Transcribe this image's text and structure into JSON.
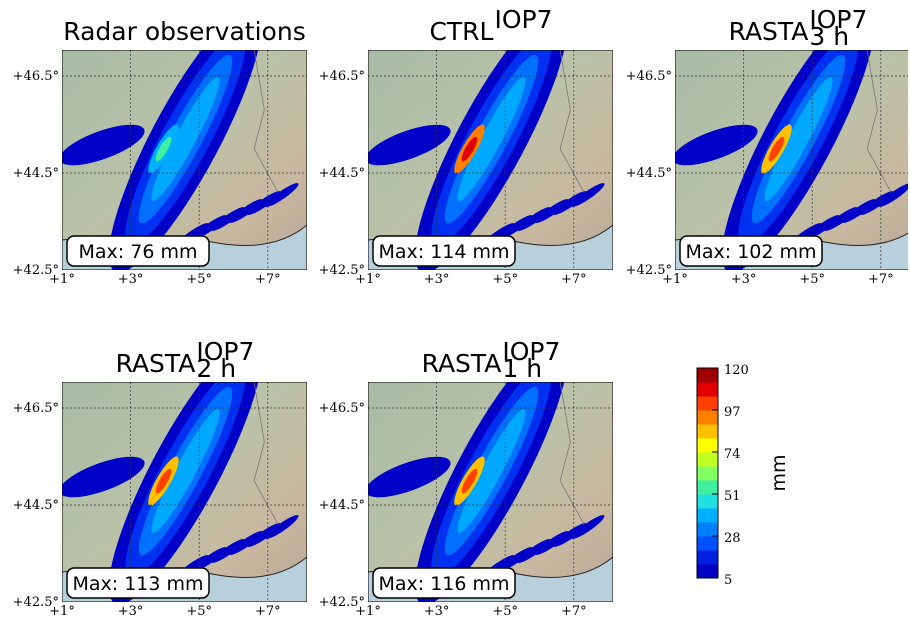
{
  "panels": [
    {
      "title": {
        "main": "Radar observations"
      },
      "max_label": "Max: 76 mm"
    },
    {
      "title": {
        "main": "CTRL",
        "sup": "IOP7"
      },
      "max_label": "Max: 114 mm"
    },
    {
      "title": {
        "main": "RASTA",
        "sup": "IOP7",
        "sub": "3 h"
      },
      "max_label": "Max: 102 mm"
    },
    {
      "title": {
        "main": "RASTA",
        "sup": "IOP7",
        "sub": "2 h"
      },
      "max_label": "Max: 113 mm"
    },
    {
      "title": {
        "main": "RASTA",
        "sup": "IOP7",
        "sub": "1 h"
      },
      "max_label": "Max: 116 mm"
    }
  ],
  "lat_ticks": [
    {
      "value": 46.5,
      "label": "+46.5°"
    },
    {
      "value": 44.5,
      "label": "+44.5°"
    },
    {
      "value": 42.5,
      "label": "+42.5°"
    }
  ],
  "lon_ticks": [
    {
      "value": 1,
      "label": "+1°"
    },
    {
      "value": 3,
      "label": "+3°"
    },
    {
      "value": 5,
      "label": "+5°"
    },
    {
      "value": 7,
      "label": "+7°"
    }
  ],
  "colorbar": {
    "label": "mm",
    "ticks": [
      5,
      28,
      51,
      74,
      97,
      120
    ],
    "colors": [
      "#0000c0",
      "#0020e0",
      "#0050ff",
      "#0080ff",
      "#00b0ff",
      "#20e0e0",
      "#40f0a0",
      "#80ff60",
      "#c0ff20",
      "#ffff00",
      "#ffc000",
      "#ff8000",
      "#ff4000",
      "#e00000",
      "#a00000"
    ]
  }
}
